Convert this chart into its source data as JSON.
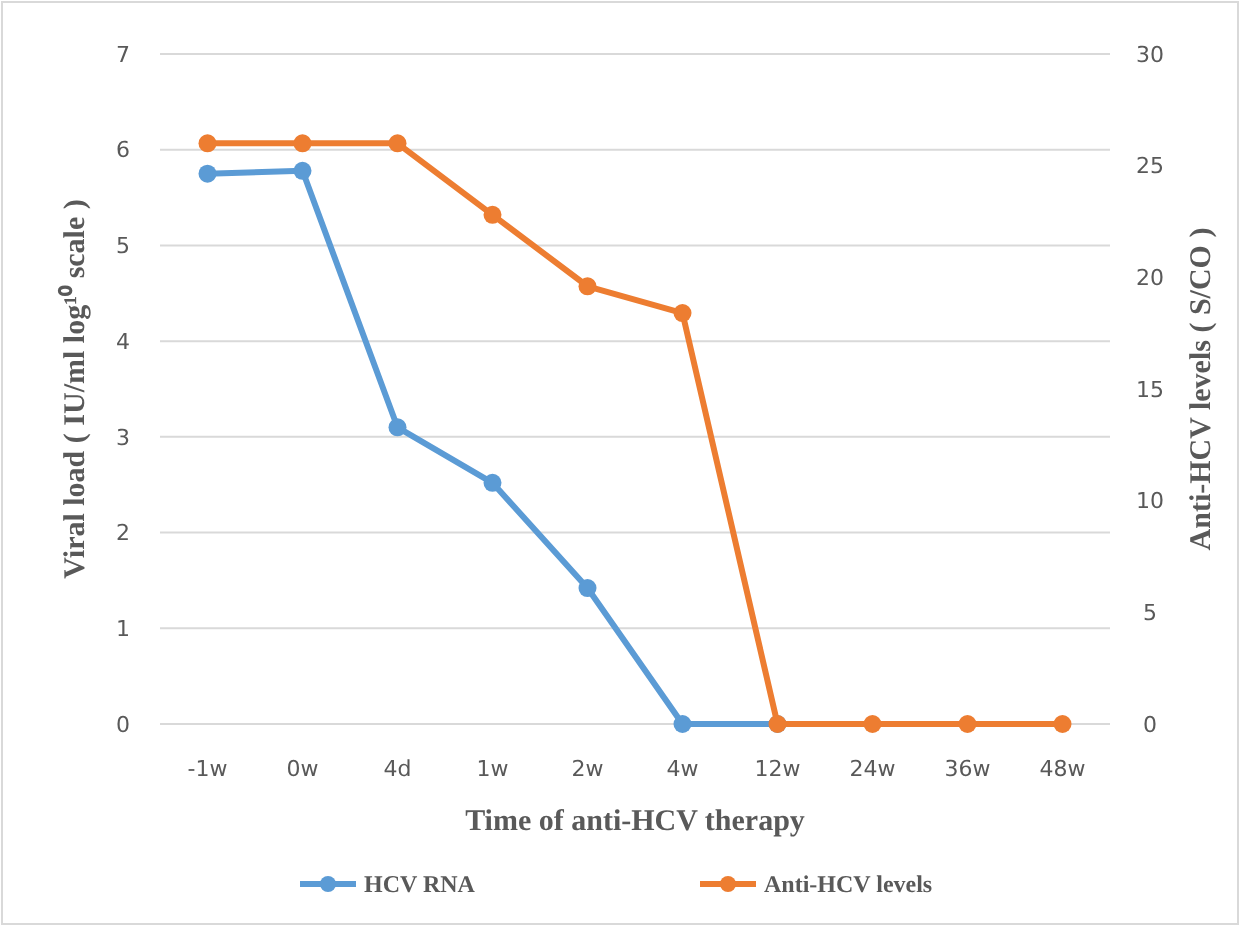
{
  "chart_data": {
    "type": "line",
    "xlabel": "Time of anti-HCV therapy",
    "ylabel": "Viral load ( IU/ml log¹⁰ scale )",
    "y2label": "Anti-HCV levels ( S/CO )",
    "categories": [
      "-1w",
      "0w",
      "4d",
      "1w",
      "2w",
      "4w",
      "12w",
      "24w",
      "36w",
      "48w"
    ],
    "series": [
      {
        "name": "HCV RNA",
        "color": "#5b9bd5",
        "values": [
          5.75,
          5.78,
          3.1,
          2.52,
          1.42,
          0,
          0,
          null,
          null,
          null
        ]
      },
      {
        "name": "Anti-HCV levels",
        "color": "#ed7d31",
        "axis": "y2",
        "values": [
          26,
          26,
          26,
          22.8,
          19.6,
          18.4,
          0,
          0,
          0,
          0
        ]
      }
    ],
    "ylim": [
      0,
      7
    ],
    "yticks": [
      0,
      1,
      2,
      3,
      4,
      5,
      6,
      7
    ],
    "y2lim": [
      0,
      30
    ],
    "y2ticks": [
      0,
      5,
      10,
      15,
      20,
      25,
      30
    ],
    "grid": "y",
    "legend": "bottom",
    "marker": "circle",
    "line_style": "solid"
  }
}
